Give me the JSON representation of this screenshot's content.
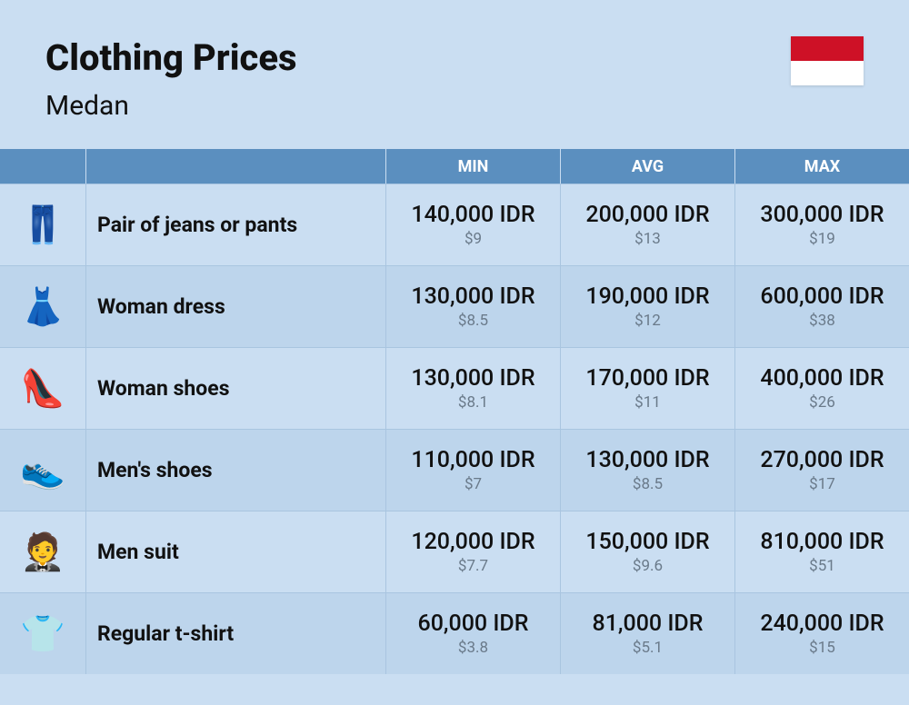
{
  "header": {
    "title": "Clothing Prices",
    "subtitle": "Medan",
    "flag_colors": {
      "top": "#ce1126",
      "bottom": "#ffffff"
    }
  },
  "columns": {
    "min": "MIN",
    "avg": "AVG",
    "max": "MAX"
  },
  "rows": [
    {
      "icon": "👖",
      "label": "Pair of jeans or pants",
      "min": {
        "idr": "140,000 IDR",
        "usd": "$9"
      },
      "avg": {
        "idr": "200,000 IDR",
        "usd": "$13"
      },
      "max": {
        "idr": "300,000 IDR",
        "usd": "$19"
      }
    },
    {
      "icon": "👗",
      "label": "Woman dress",
      "min": {
        "idr": "130,000 IDR",
        "usd": "$8.5"
      },
      "avg": {
        "idr": "190,000 IDR",
        "usd": "$12"
      },
      "max": {
        "idr": "600,000 IDR",
        "usd": "$38"
      }
    },
    {
      "icon": "👠",
      "label": "Woman shoes",
      "min": {
        "idr": "130,000 IDR",
        "usd": "$8.1"
      },
      "avg": {
        "idr": "170,000 IDR",
        "usd": "$11"
      },
      "max": {
        "idr": "400,000 IDR",
        "usd": "$26"
      }
    },
    {
      "icon": "👟",
      "label": "Men's shoes",
      "min": {
        "idr": "110,000 IDR",
        "usd": "$7"
      },
      "avg": {
        "idr": "130,000 IDR",
        "usd": "$8.5"
      },
      "max": {
        "idr": "270,000 IDR",
        "usd": "$17"
      }
    },
    {
      "icon": "🤵",
      "label": "Men suit",
      "min": {
        "idr": "120,000 IDR",
        "usd": "$7.7"
      },
      "avg": {
        "idr": "150,000 IDR",
        "usd": "$9.6"
      },
      "max": {
        "idr": "810,000 IDR",
        "usd": "$51"
      }
    },
    {
      "icon": "👕",
      "label": "Regular t-shirt",
      "min": {
        "idr": "60,000 IDR",
        "usd": "$3.8"
      },
      "avg": {
        "idr": "81,000 IDR",
        "usd": "$5.1"
      },
      "max": {
        "idr": "240,000 IDR",
        "usd": "$15"
      }
    }
  ],
  "styling": {
    "background_color": "#cadef2",
    "row_alt_color": "#bdd5ec",
    "header_bg": "#5b8fbf",
    "border_color": "#a9c5e0",
    "title_fontsize": 40,
    "subtitle_fontsize": 30,
    "label_fontsize": 23,
    "price_fontsize": 25,
    "price_sub_fontsize": 17,
    "price_sub_color": "#6a7a8a"
  }
}
